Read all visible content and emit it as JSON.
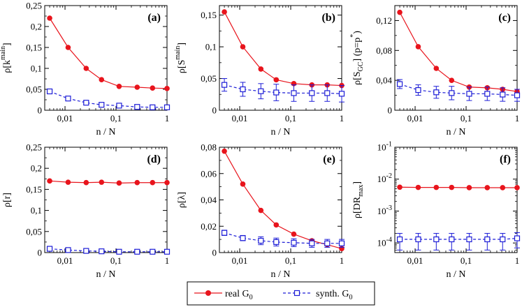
{
  "legend": {
    "real_label": "real G",
    "real_sub": "0",
    "synth_label": "synth. G",
    "synth_sub": "0"
  },
  "colors": {
    "real": "#e8141c",
    "synth": "#1c1cd6",
    "axis": "#000000"
  },
  "chart_data": [
    {
      "type": "line",
      "panel_label": "(a)",
      "title": "",
      "xlabel": "n / N",
      "xscale": "log",
      "xlim": [
        0.004,
        1
      ],
      "xticks": [
        0.01,
        0.1,
        1
      ],
      "xtick_labels": [
        "0,01",
        "0,1",
        "1"
      ],
      "ylabel_main": "ρ[k",
      "ylabel_sup": "main",
      "ylabel_tail": "]",
      "yscale": "linear",
      "ylim": [
        0,
        0.25
      ],
      "yticks": [
        0,
        0.05,
        0.1,
        0.15,
        0.2,
        0.25
      ],
      "ytick_labels": [
        "0",
        "0,05",
        "0,1",
        "0,15",
        "0,2",
        "0,25"
      ],
      "x": [
        0.005,
        0.0115,
        0.026,
        0.052,
        0.115,
        0.26,
        0.52,
        1.0
      ],
      "series": [
        {
          "name": "real G0",
          "values": [
            0.22,
            0.15,
            0.1,
            0.073,
            0.057,
            0.055,
            0.053,
            0.052
          ],
          "errors": [
            0,
            0,
            0,
            0,
            0,
            0,
            0,
            0
          ]
        },
        {
          "name": "synth. G0",
          "values": [
            0.045,
            0.028,
            0.018,
            0.013,
            0.011,
            0.008,
            0.007,
            0.007
          ],
          "errors": [
            0.004,
            0.004,
            0.004,
            0.005,
            0.005,
            0.005,
            0.005,
            0.004
          ]
        }
      ]
    },
    {
      "type": "line",
      "panel_label": "(b)",
      "title": "",
      "xlabel": "n / N",
      "xscale": "log",
      "xlim": [
        0.004,
        1
      ],
      "xticks": [
        0.01,
        0.1,
        1
      ],
      "xtick_labels": [
        "0,01",
        "0,1",
        "1"
      ],
      "ylabel_main": "ρ[S",
      "ylabel_sup": "main",
      "ylabel_tail": "]",
      "yscale": "linear",
      "ylim": [
        0,
        0.165
      ],
      "yticks": [
        0,
        0.05,
        0.1,
        0.15
      ],
      "ytick_labels": [
        "0",
        "0,05",
        "0,1",
        "0,15"
      ],
      "x": [
        0.005,
        0.0115,
        0.026,
        0.052,
        0.115,
        0.26,
        0.52,
        1.0
      ],
      "series": [
        {
          "name": "real G0",
          "values": [
            0.155,
            0.1,
            0.065,
            0.048,
            0.042,
            0.04,
            0.04,
            0.039
          ],
          "errors": [
            0,
            0,
            0,
            0,
            0,
            0,
            0,
            0
          ]
        },
        {
          "name": "synth. G0",
          "values": [
            0.04,
            0.033,
            0.03,
            0.028,
            0.027,
            0.027,
            0.027,
            0.026
          ],
          "errors": [
            0.01,
            0.011,
            0.012,
            0.013,
            0.013,
            0.013,
            0.013,
            0.013
          ]
        }
      ]
    },
    {
      "type": "line",
      "panel_label": "(c)",
      "title": "",
      "xlabel": "n / N",
      "xscale": "log",
      "xlim": [
        0.004,
        1
      ],
      "xticks": [
        0.01,
        0.1,
        1
      ],
      "xtick_labels": [
        "0,01",
        "0,1",
        "1"
      ],
      "ylabel_main": "ρ[S",
      "ylabel_sub": "GC",
      "ylabel_tail": "] (p=p",
      "ylabel_sup": "*",
      "ylabel_end": ")",
      "yscale": "linear",
      "ylim": [
        0,
        0.14
      ],
      "yticks": [
        0,
        0.04,
        0.08,
        0.12
      ],
      "ytick_labels": [
        "0",
        "0,04",
        "0,08",
        "0,12"
      ],
      "x": [
        0.005,
        0.0115,
        0.026,
        0.052,
        0.115,
        0.26,
        0.52,
        1.0
      ],
      "series": [
        {
          "name": "real G0",
          "values": [
            0.131,
            0.085,
            0.056,
            0.04,
            0.031,
            0.03,
            0.028,
            0.025
          ],
          "errors": [
            0,
            0,
            0,
            0,
            0,
            0,
            0,
            0
          ]
        },
        {
          "name": "synth. G0",
          "values": [
            0.035,
            0.027,
            0.024,
            0.023,
            0.022,
            0.022,
            0.021,
            0.02
          ],
          "errors": [
            0.006,
            0.007,
            0.008,
            0.009,
            0.009,
            0.009,
            0.009,
            0.008
          ]
        }
      ]
    },
    {
      "type": "line",
      "panel_label": "(d)",
      "title": "",
      "xlabel": "n / N",
      "xscale": "log",
      "xlim": [
        0.004,
        1
      ],
      "xticks": [
        0.01,
        0.1,
        1
      ],
      "xtick_labels": [
        "0,01",
        "0,1",
        "1"
      ],
      "ylabel_main": "ρ[r]",
      "yscale": "linear",
      "ylim": [
        0,
        0.25
      ],
      "yticks": [
        0,
        0.05,
        0.1,
        0.15,
        0.2,
        0.25
      ],
      "ytick_labels": [
        "0",
        "0,05",
        "0,1",
        "0,15",
        "0,2",
        "0,25"
      ],
      "x": [
        0.005,
        0.0115,
        0.026,
        0.052,
        0.115,
        0.26,
        0.52,
        1.0
      ],
      "series": [
        {
          "name": "real G0",
          "values": [
            0.17,
            0.167,
            0.166,
            0.167,
            0.165,
            0.166,
            0.166,
            0.166
          ],
          "errors": [
            0,
            0,
            0,
            0,
            0,
            0,
            0,
            0
          ]
        },
        {
          "name": "synth. G0",
          "values": [
            0.009,
            0.006,
            0.004,
            0.003,
            0.002,
            0.002,
            0.002,
            0.002
          ],
          "errors": [
            0.003,
            0.003,
            0.003,
            0.003,
            0.003,
            0.003,
            0.003,
            0.003
          ]
        }
      ]
    },
    {
      "type": "line",
      "panel_label": "(e)",
      "title": "",
      "xlabel": "n / N",
      "xscale": "log",
      "xlim": [
        0.004,
        1
      ],
      "xticks": [
        0.01,
        0.1,
        1
      ],
      "xtick_labels": [
        "0,01",
        "0,1",
        "1"
      ],
      "ylabel_main": "ρ[λ]",
      "yscale": "linear",
      "ylim": [
        0,
        0.08
      ],
      "yticks": [
        0,
        0.02,
        0.04,
        0.06,
        0.08
      ],
      "ytick_labels": [
        "0",
        "0,02",
        "0,04",
        "0,06",
        "0,08"
      ],
      "x": [
        0.005,
        0.0115,
        0.026,
        0.052,
        0.115,
        0.26,
        0.52,
        1.0
      ],
      "series": [
        {
          "name": "real G0",
          "values": [
            0.077,
            0.052,
            0.032,
            0.021,
            0.014,
            0.009,
            0.006,
            0.003
          ],
          "errors": [
            0,
            0,
            0,
            0,
            0,
            0,
            0,
            0
          ]
        },
        {
          "name": "synth. G0",
          "values": [
            0.015,
            0.011,
            0.009,
            0.008,
            0.0075,
            0.007,
            0.007,
            0.007
          ],
          "errors": [
            0.002,
            0.002,
            0.003,
            0.003,
            0.003,
            0.003,
            0.003,
            0.003
          ]
        }
      ]
    },
    {
      "type": "line",
      "panel_label": "(f)",
      "title": "",
      "xlabel": "n / N",
      "xscale": "log",
      "xlim": [
        0.004,
        1
      ],
      "xticks": [
        0.01,
        0.1,
        1
      ],
      "xtick_labels": [
        "0,01",
        "0,1",
        "1"
      ],
      "ylabel_main": "ρ[DR",
      "ylabel_sub": "max",
      "ylabel_tail": "]",
      "yscale": "log",
      "ylim": [
        5e-05,
        0.1
      ],
      "yticks": [
        0.0001,
        0.001,
        0.01,
        0.1
      ],
      "ytick_labels": [
        {
          "base": "10",
          "exp": "-4"
        },
        {
          "base": "10",
          "exp": "-3"
        },
        {
          "base": "10",
          "exp": "-2"
        },
        {
          "base": "10",
          "exp": "-1"
        }
      ],
      "x": [
        0.005,
        0.0115,
        0.026,
        0.052,
        0.115,
        0.26,
        0.52,
        1.0
      ],
      "series": [
        {
          "name": "real G0",
          "values": [
            0.0056,
            0.0055,
            0.0055,
            0.0055,
            0.0054,
            0.0054,
            0.0054,
            0.0054
          ],
          "errors": [
            0,
            0,
            0,
            0,
            0,
            0,
            0,
            0
          ]
        },
        {
          "name": "synth. G0",
          "values": [
            0.00013,
            0.00013,
            0.00013,
            0.00013,
            0.00013,
            0.00013,
            0.00013,
            0.00014
          ],
          "errors": [
            7e-05,
            7e-05,
            7e-05,
            7e-05,
            7e-05,
            7e-05,
            7e-05,
            7e-05
          ]
        }
      ]
    }
  ]
}
